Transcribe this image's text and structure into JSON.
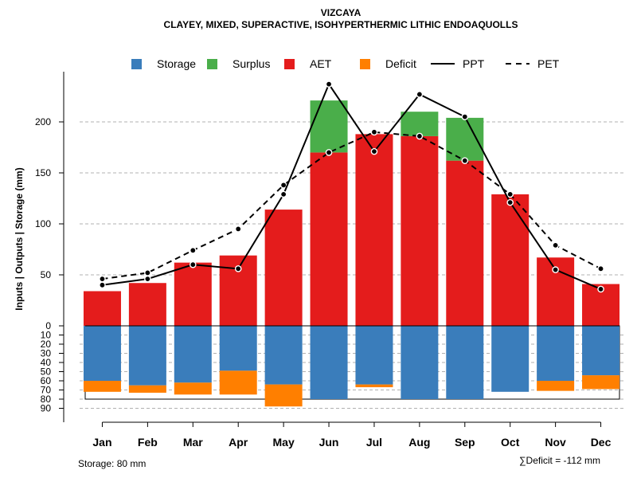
{
  "chart_data": {
    "type": "bar",
    "title": "VIZCAYA",
    "subtitle": "CLAYEY, MIXED, SUPERACTIVE, ISOHYPERTHERMIC LITHIC ENDOAQUOLLS",
    "ylabel": "Inputs | Outputs | Storage    (mm)",
    "categories": [
      "Jan",
      "Feb",
      "Mar",
      "Apr",
      "May",
      "Jun",
      "Jul",
      "Aug",
      "Sep",
      "Oct",
      "Nov",
      "Dec"
    ],
    "upper_ylim": [
      0,
      240
    ],
    "upper_ticks": [
      "0",
      "50",
      "100",
      "150",
      "200"
    ],
    "upper_tick_values": [
      0,
      50,
      100,
      150,
      200
    ],
    "lower_ylim": [
      0,
      90
    ],
    "lower_ticks": [
      "0",
      "10",
      "20",
      "30",
      "40",
      "50",
      "60",
      "70",
      "80",
      "90"
    ],
    "lower_tick_values": [
      0,
      10,
      20,
      30,
      40,
      50,
      60,
      70,
      80,
      90
    ],
    "legend": [
      {
        "key": "storage",
        "label": "Storage",
        "kind": "box"
      },
      {
        "key": "surplus",
        "label": "Surplus",
        "kind": "box"
      },
      {
        "key": "aet",
        "label": "AET",
        "kind": "box"
      },
      {
        "key": "deficit",
        "label": "Deficit",
        "kind": "box"
      },
      {
        "key": "ppt",
        "label": "PPT",
        "kind": "solid"
      },
      {
        "key": "pet",
        "label": "PET",
        "kind": "dashed"
      }
    ],
    "series": [
      {
        "name": "AET",
        "values": [
          34,
          42,
          62,
          69,
          114,
          170,
          188,
          186,
          162,
          129,
          67,
          41
        ]
      },
      {
        "name": "Surplus",
        "values": [
          0,
          0,
          0,
          0,
          0,
          51,
          0,
          24,
          42,
          0,
          0,
          0
        ]
      },
      {
        "name": "PPT",
        "values": [
          40,
          46,
          60,
          56,
          129,
          237,
          171,
          227,
          205,
          121,
          55,
          36
        ]
      },
      {
        "name": "PET",
        "values": [
          46,
          52,
          74,
          95,
          138,
          170,
          190,
          186,
          162,
          129,
          79,
          56
        ]
      },
      {
        "name": "Storage",
        "values": [
          60,
          65,
          62,
          49,
          64,
          80,
          64,
          80,
          80,
          72,
          60,
          54
        ]
      },
      {
        "name": "Deficit",
        "values": [
          12,
          8,
          13,
          26,
          24,
          0,
          3,
          0,
          0,
          0,
          11,
          15
        ]
      }
    ],
    "storage_capacity": 80,
    "storage_note": "Storage: 80 mm",
    "deficit_note": "∑Deficit = -112 mm"
  },
  "colors": {
    "storage": "#3a7dbb",
    "surplus": "#4aae4a",
    "aet": "#e41c1c",
    "deficit": "#ff7f00",
    "line": "#000000",
    "grid": "#b0b0b0"
  }
}
